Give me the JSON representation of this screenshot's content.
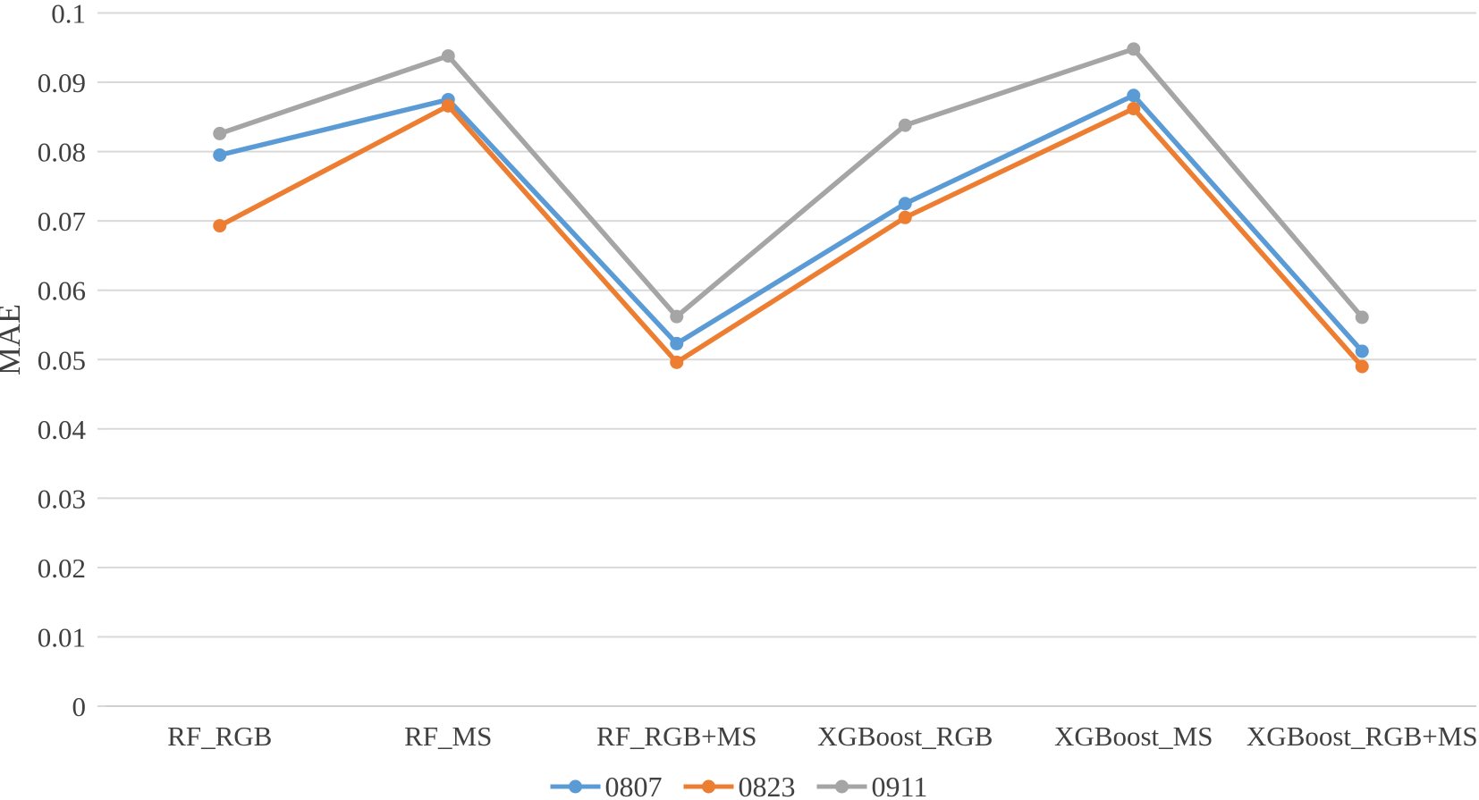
{
  "page": {
    "background": "#ffffff"
  },
  "chart_data": {
    "type": "line",
    "title": "",
    "xlabel": "",
    "ylabel": "MAE",
    "categories": [
      "RF_RGB",
      "RF_MS",
      "RF_RGB+MS",
      "XGBoost_RGB",
      "XGBoost_MS",
      "XGBoost_RGB+MS"
    ],
    "series": [
      {
        "name": "0807",
        "color": "#5B9BD5",
        "values": [
          0.0795,
          0.0875,
          0.0523,
          0.0725,
          0.0881,
          0.0512
        ]
      },
      {
        "name": "0823",
        "color": "#ED7D31",
        "values": [
          0.0693,
          0.0866,
          0.0496,
          0.0705,
          0.0862,
          0.049
        ]
      },
      {
        "name": "0911",
        "color": "#A5A5A5",
        "values": [
          0.0826,
          0.0938,
          0.0562,
          0.0838,
          0.0948,
          0.0561
        ]
      }
    ],
    "ylim": [
      0,
      0.1
    ],
    "yticks": [
      {
        "value": 0,
        "label": "0"
      },
      {
        "value": 0.01,
        "label": "0.01"
      },
      {
        "value": 0.02,
        "label": "0.02"
      },
      {
        "value": 0.03,
        "label": "0.03"
      },
      {
        "value": 0.04,
        "label": "0.04"
      },
      {
        "value": 0.05,
        "label": "0.05"
      },
      {
        "value": 0.06,
        "label": "0.06"
      },
      {
        "value": 0.07,
        "label": "0.07"
      },
      {
        "value": 0.08,
        "label": "0.08"
      },
      {
        "value": 0.09,
        "label": "0.09"
      },
      {
        "value": 0.1,
        "label": "0.1"
      }
    ],
    "grid": true,
    "legend_position": "bottom",
    "style": {
      "gridline_color": "#D9D9D9",
      "axisline_color": "#D0D0D0",
      "text_color": "#404040",
      "marker": "circle",
      "line_width": 5.5,
      "marker_radius": 7.5
    }
  }
}
